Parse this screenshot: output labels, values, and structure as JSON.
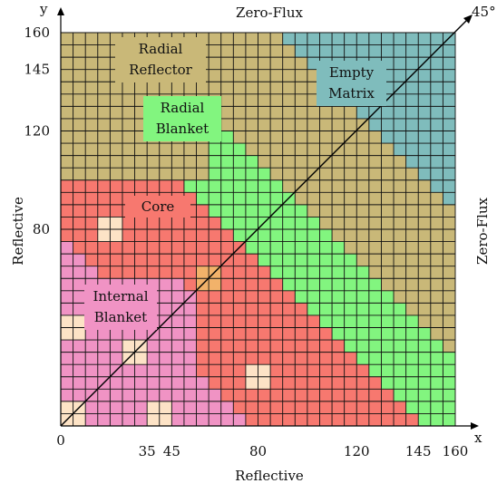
{
  "boundaries": {
    "top": "Zero-Flux",
    "right": "Zero-Flux",
    "left": "Reflective",
    "bottom": "Reflective"
  },
  "diagonal_label": "45°",
  "axes": {
    "x_label": "x",
    "y_label": "y",
    "origin": "0",
    "x_ticks": [
      "35",
      "45",
      "80",
      "120",
      "145",
      "160"
    ],
    "y_ticks": [
      "160",
      "145",
      "120",
      "80"
    ]
  },
  "regions": [
    {
      "name": "internal-blanket",
      "lines": [
        "Internal",
        "Blanket"
      ],
      "color": "#f093c4"
    },
    {
      "name": "core",
      "lines": [
        "Core"
      ],
      "color": "#f7786f"
    },
    {
      "name": "radial-blanket",
      "lines": [
        "Radial",
        "Blanket"
      ],
      "color": "#82f57f"
    },
    {
      "name": "radial-reflector",
      "lines": [
        "Radial",
        "Reflector"
      ],
      "color": "#c9b878"
    },
    {
      "name": "empty-matrix",
      "lines": [
        "Empty",
        "Matrix"
      ],
      "color": "#7fbcbc"
    }
  ],
  "special_cell_color": "#fde3c6",
  "diagonal_special_cell_color": "#f2b26a",
  "grid_cells": 16
}
